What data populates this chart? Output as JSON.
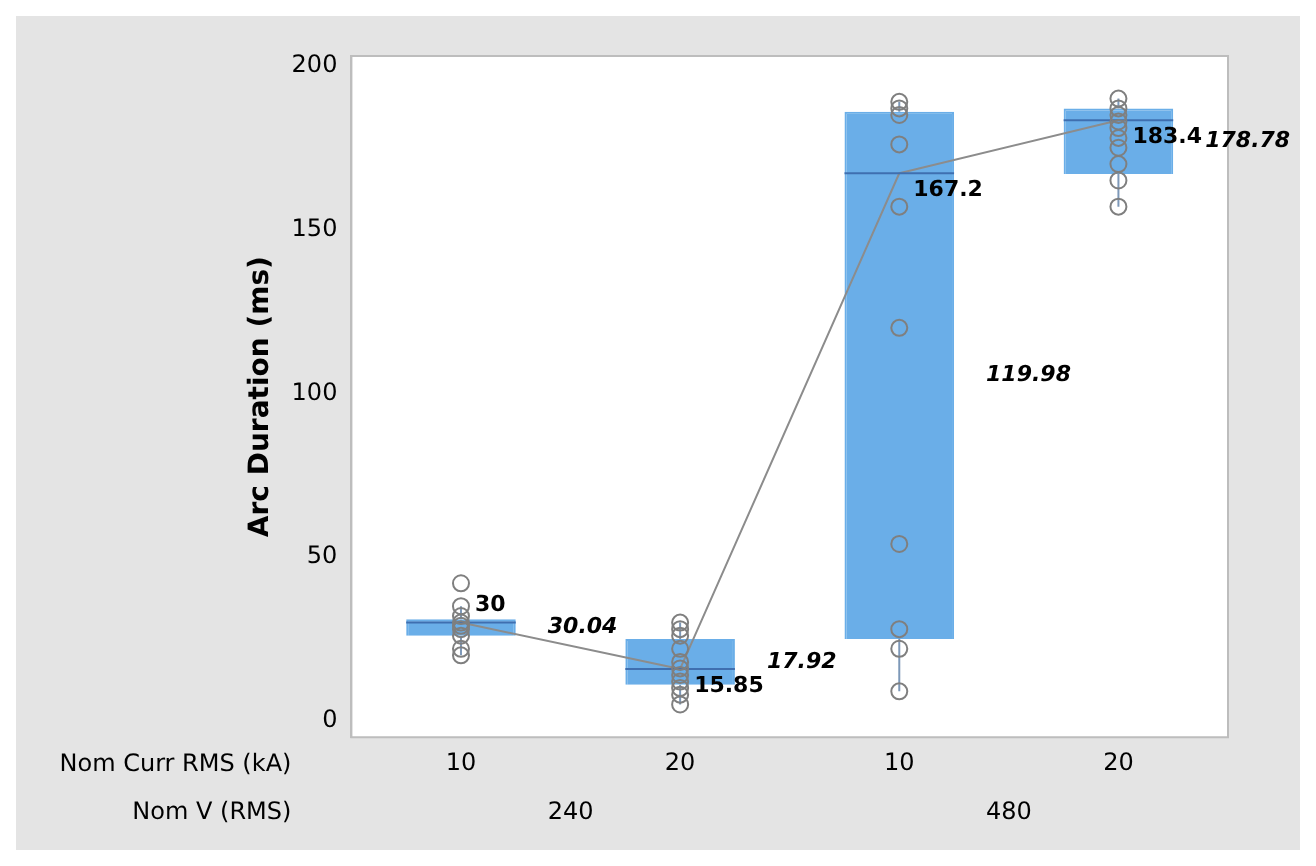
{
  "chart_data": {
    "type": "box",
    "ylabel": "Arc Duration (ms)",
    "categories": [
      "10",
      "20",
      "10",
      "20"
    ],
    "color": "#6aaee8",
    "boxes": [
      {
        "low": 20,
        "q1": 26,
        "median": 30,
        "q3": 31,
        "high": 35,
        "outliers": [
          42,
          35,
          32,
          30,
          29,
          28,
          26,
          22,
          20
        ]
      },
      {
        "low": 5,
        "q1": 11,
        "median": 15.85,
        "q3": 25,
        "high": 30,
        "outliers": [
          30,
          28,
          26,
          22,
          18,
          16,
          14,
          12,
          10,
          8,
          5
        ]
      },
      {
        "low": 9,
        "q1": 25,
        "median": 167.2,
        "q3": 186,
        "high": 189,
        "outliers": [
          189,
          187,
          185,
          176,
          157,
          120,
          54,
          28,
          22,
          9
        ]
      },
      {
        "low": 157,
        "q1": 167,
        "median": 183.4,
        "q3": 187,
        "high": 190,
        "outliers": [
          190,
          187,
          185,
          183,
          181,
          178,
          175,
          170,
          165,
          157
        ]
      }
    ],
    "series": [
      {
        "type": "line",
        "color": "#8c8c8c",
        "values": [
          30,
          15.85,
          167.2,
          183.4
        ],
        "value_labels": [
          "30",
          "15.85",
          "167.2",
          "183.4"
        ]
      }
    ],
    "legend": false,
    "grid": false,
    "ylim": [
      -5,
      203
    ],
    "yticks": [
      0,
      50,
      100,
      150,
      200
    ],
    "annotations": [
      "Nom Curr RMS (kA)",
      "Nom V (RMS)",
      "240",
      "480",
      "30.04",
      "17.92",
      "119.98",
      "178.78"
    ]
  }
}
